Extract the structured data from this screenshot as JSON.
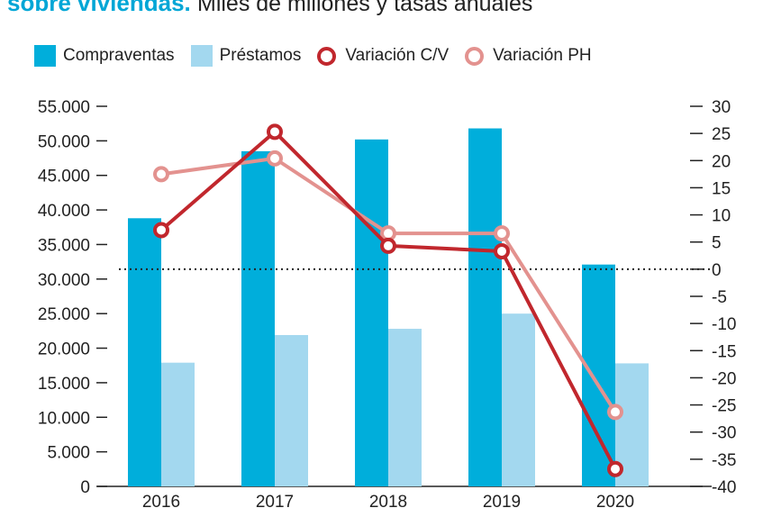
{
  "title": {
    "lead": "sobre viviendas.",
    "subtitle": "Miles de millones y tasas anuales"
  },
  "legend": [
    {
      "label": "Compraventas",
      "kind": "bar",
      "color": "#00aedb"
    },
    {
      "label": "Préstamos",
      "kind": "bar",
      "color": "#a3d8ef"
    },
    {
      "label": "Variación C/V",
      "kind": "ring",
      "color": "#c1272d"
    },
    {
      "label": "Variación PH",
      "kind": "ring",
      "color": "#e3928f"
    }
  ],
  "chart_data": {
    "type": "bar+line",
    "categories": [
      "2016",
      "2017",
      "2018",
      "2019",
      "2020"
    ],
    "bar_series": [
      {
        "name": "Compraventas",
        "values": [
          38800,
          48500,
          50200,
          51800,
          32100
        ],
        "color": "#00aedb"
      },
      {
        "name": "Préstamos",
        "values": [
          17900,
          21900,
          22800,
          25000,
          17800
        ],
        "color": "#a3d8ef"
      }
    ],
    "line_series": [
      {
        "name": "Variación C/V",
        "values": [
          7.2,
          25.3,
          4.3,
          3.3,
          -36.8
        ],
        "color": "#c1272d"
      },
      {
        "name": "Variación PH",
        "values": [
          17.5,
          20.4,
          6.6,
          6.6,
          -26.3
        ],
        "color": "#e3928f"
      }
    ],
    "y_left": {
      "min": 0,
      "max": 55000,
      "step": 5000,
      "tick_labels": [
        "0",
        "5.000",
        "10.000",
        "15.000",
        "20.000",
        "25.000",
        "30.000",
        "35.000",
        "40.000",
        "45.000",
        "50.000",
        "55.000"
      ]
    },
    "y_right": {
      "min": -40,
      "max": 30,
      "step": 5,
      "tick_labels": [
        "-40",
        "-35",
        "-30",
        "-25",
        "-20",
        "-15",
        "-10",
        "-5",
        "0",
        "5",
        "10",
        "15",
        "20",
        "25",
        "30"
      ]
    },
    "zero_line": "dotted",
    "grid": false,
    "legend_position": "top"
  }
}
